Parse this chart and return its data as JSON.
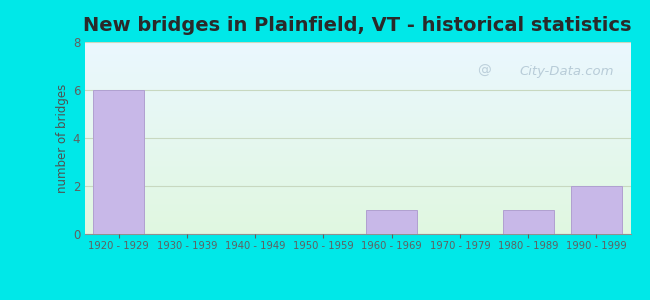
{
  "title": "New bridges in Plainfield, VT - historical statistics",
  "categories": [
    "1920 - 1929",
    "1930 - 1939",
    "1940 - 1949",
    "1950 - 1959",
    "1960 - 1969",
    "1970 - 1979",
    "1980 - 1989",
    "1990 - 1999"
  ],
  "values": [
    6,
    0,
    0,
    0,
    1,
    0,
    1,
    2
  ],
  "bar_color": "#c8b8e8",
  "bar_edgecolor": "#b0a0d0",
  "ylabel": "number of bridges",
  "ylim": [
    0,
    8
  ],
  "yticks": [
    0,
    2,
    4,
    6,
    8
  ],
  "background_outer": "#00e8e8",
  "title_fontsize": 14,
  "title_fontweight": "bold",
  "title_color": "#2a2a2a",
  "axis_label_color": "#505050",
  "tick_label_color": "#606060",
  "watermark_text": "City-Data.com",
  "watermark_color": "#b8ccd8",
  "grid_color": "#c8d8c0",
  "grid_linewidth": 0.8,
  "bar_width": 0.75
}
